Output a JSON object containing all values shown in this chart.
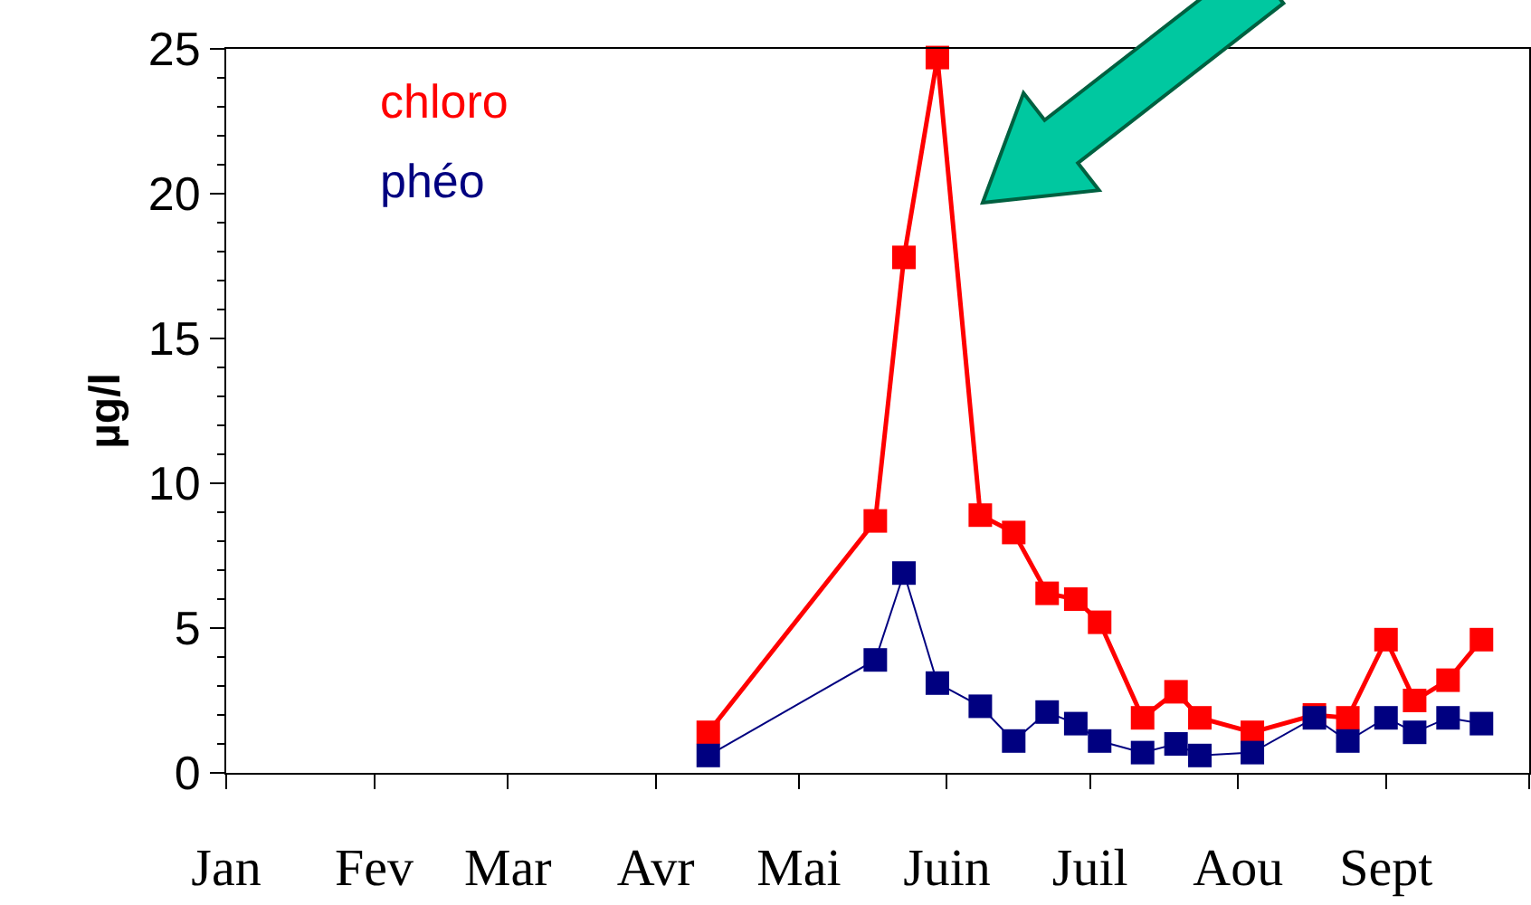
{
  "chart_data": {
    "type": "line",
    "ylabel": "µg/l",
    "ylim": [
      0,
      25
    ],
    "yticks": [
      0,
      5,
      10,
      15,
      20,
      25
    ],
    "xlim": [
      "--01-01",
      "--10-01"
    ],
    "xticks": [
      {
        "value": "--01-01",
        "label": "Jan"
      },
      {
        "value": "--02-01",
        "label": "Fev"
      },
      {
        "value": "--03-01",
        "label": "Mar"
      },
      {
        "value": "--04-01",
        "label": "Avr"
      },
      {
        "value": "--05-01",
        "label": "Mai"
      },
      {
        "value": "--06-01",
        "label": "Juin"
      },
      {
        "value": "--07-01",
        "label": "Juil"
      },
      {
        "value": "--08-01",
        "label": "Aou"
      },
      {
        "value": "--09-01",
        "label": "Sept"
      },
      {
        "value": "--10-01",
        "label": null
      }
    ],
    "x": [
      "--04-12",
      "--05-17",
      "--05-23",
      "--05-30",
      "--06-08",
      "--06-15",
      "--06-22",
      "--06-28",
      "--07-03",
      "--07-12",
      "--07-19",
      "--07-24",
      "--08-04",
      "--08-17",
      "--08-24",
      "--09-01",
      "--09-07",
      "--09-14",
      "--09-21"
    ],
    "marker": "square",
    "line_style": "solid",
    "legend": false,
    "series": [
      {
        "name": "chloro",
        "color": "#ff0000",
        "values": [
          1.4,
          8.7,
          17.8,
          24.7,
          8.9,
          8.3,
          6.2,
          6.0,
          5.2,
          1.9,
          2.8,
          1.9,
          1.4,
          2.0,
          1.9,
          4.6,
          2.5,
          3.2,
          4.6
        ]
      },
      {
        "name": "phéo",
        "color": "#000080",
        "values": [
          0.6,
          3.9,
          6.9,
          3.1,
          2.3,
          1.1,
          2.1,
          1.7,
          1.1,
          0.7,
          1.0,
          0.6,
          0.7,
          1.9,
          1.1,
          1.9,
          1.4,
          1.9,
          1.7
        ]
      }
    ]
  }
}
